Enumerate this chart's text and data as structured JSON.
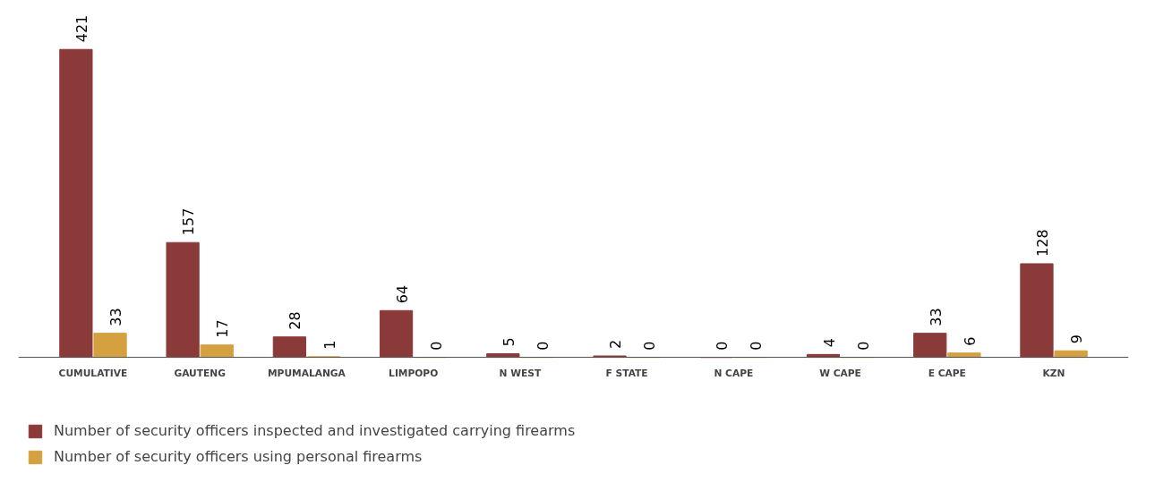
{
  "chart_data": {
    "type": "bar",
    "categories": [
      "CUMULATIVE",
      "GAUTENG",
      "MPUMALANGA",
      "LIMPOPO",
      "N WEST",
      "F STATE",
      "N CAPE",
      "W CAPE",
      "E CAPE",
      "KZN"
    ],
    "series": [
      {
        "name": "Number of security officers inspected and investigated carrying firearms",
        "color": "#8b3a3a",
        "values": [
          421,
          157,
          28,
          64,
          5,
          2,
          0,
          4,
          33,
          128
        ]
      },
      {
        "name": "Number of security officers using personal firearms",
        "color": "#d4a040",
        "values": [
          33,
          17,
          1,
          0,
          0,
          0,
          0,
          0,
          6,
          9
        ]
      }
    ],
    "data_labels": true,
    "legend": "bottom left"
  }
}
